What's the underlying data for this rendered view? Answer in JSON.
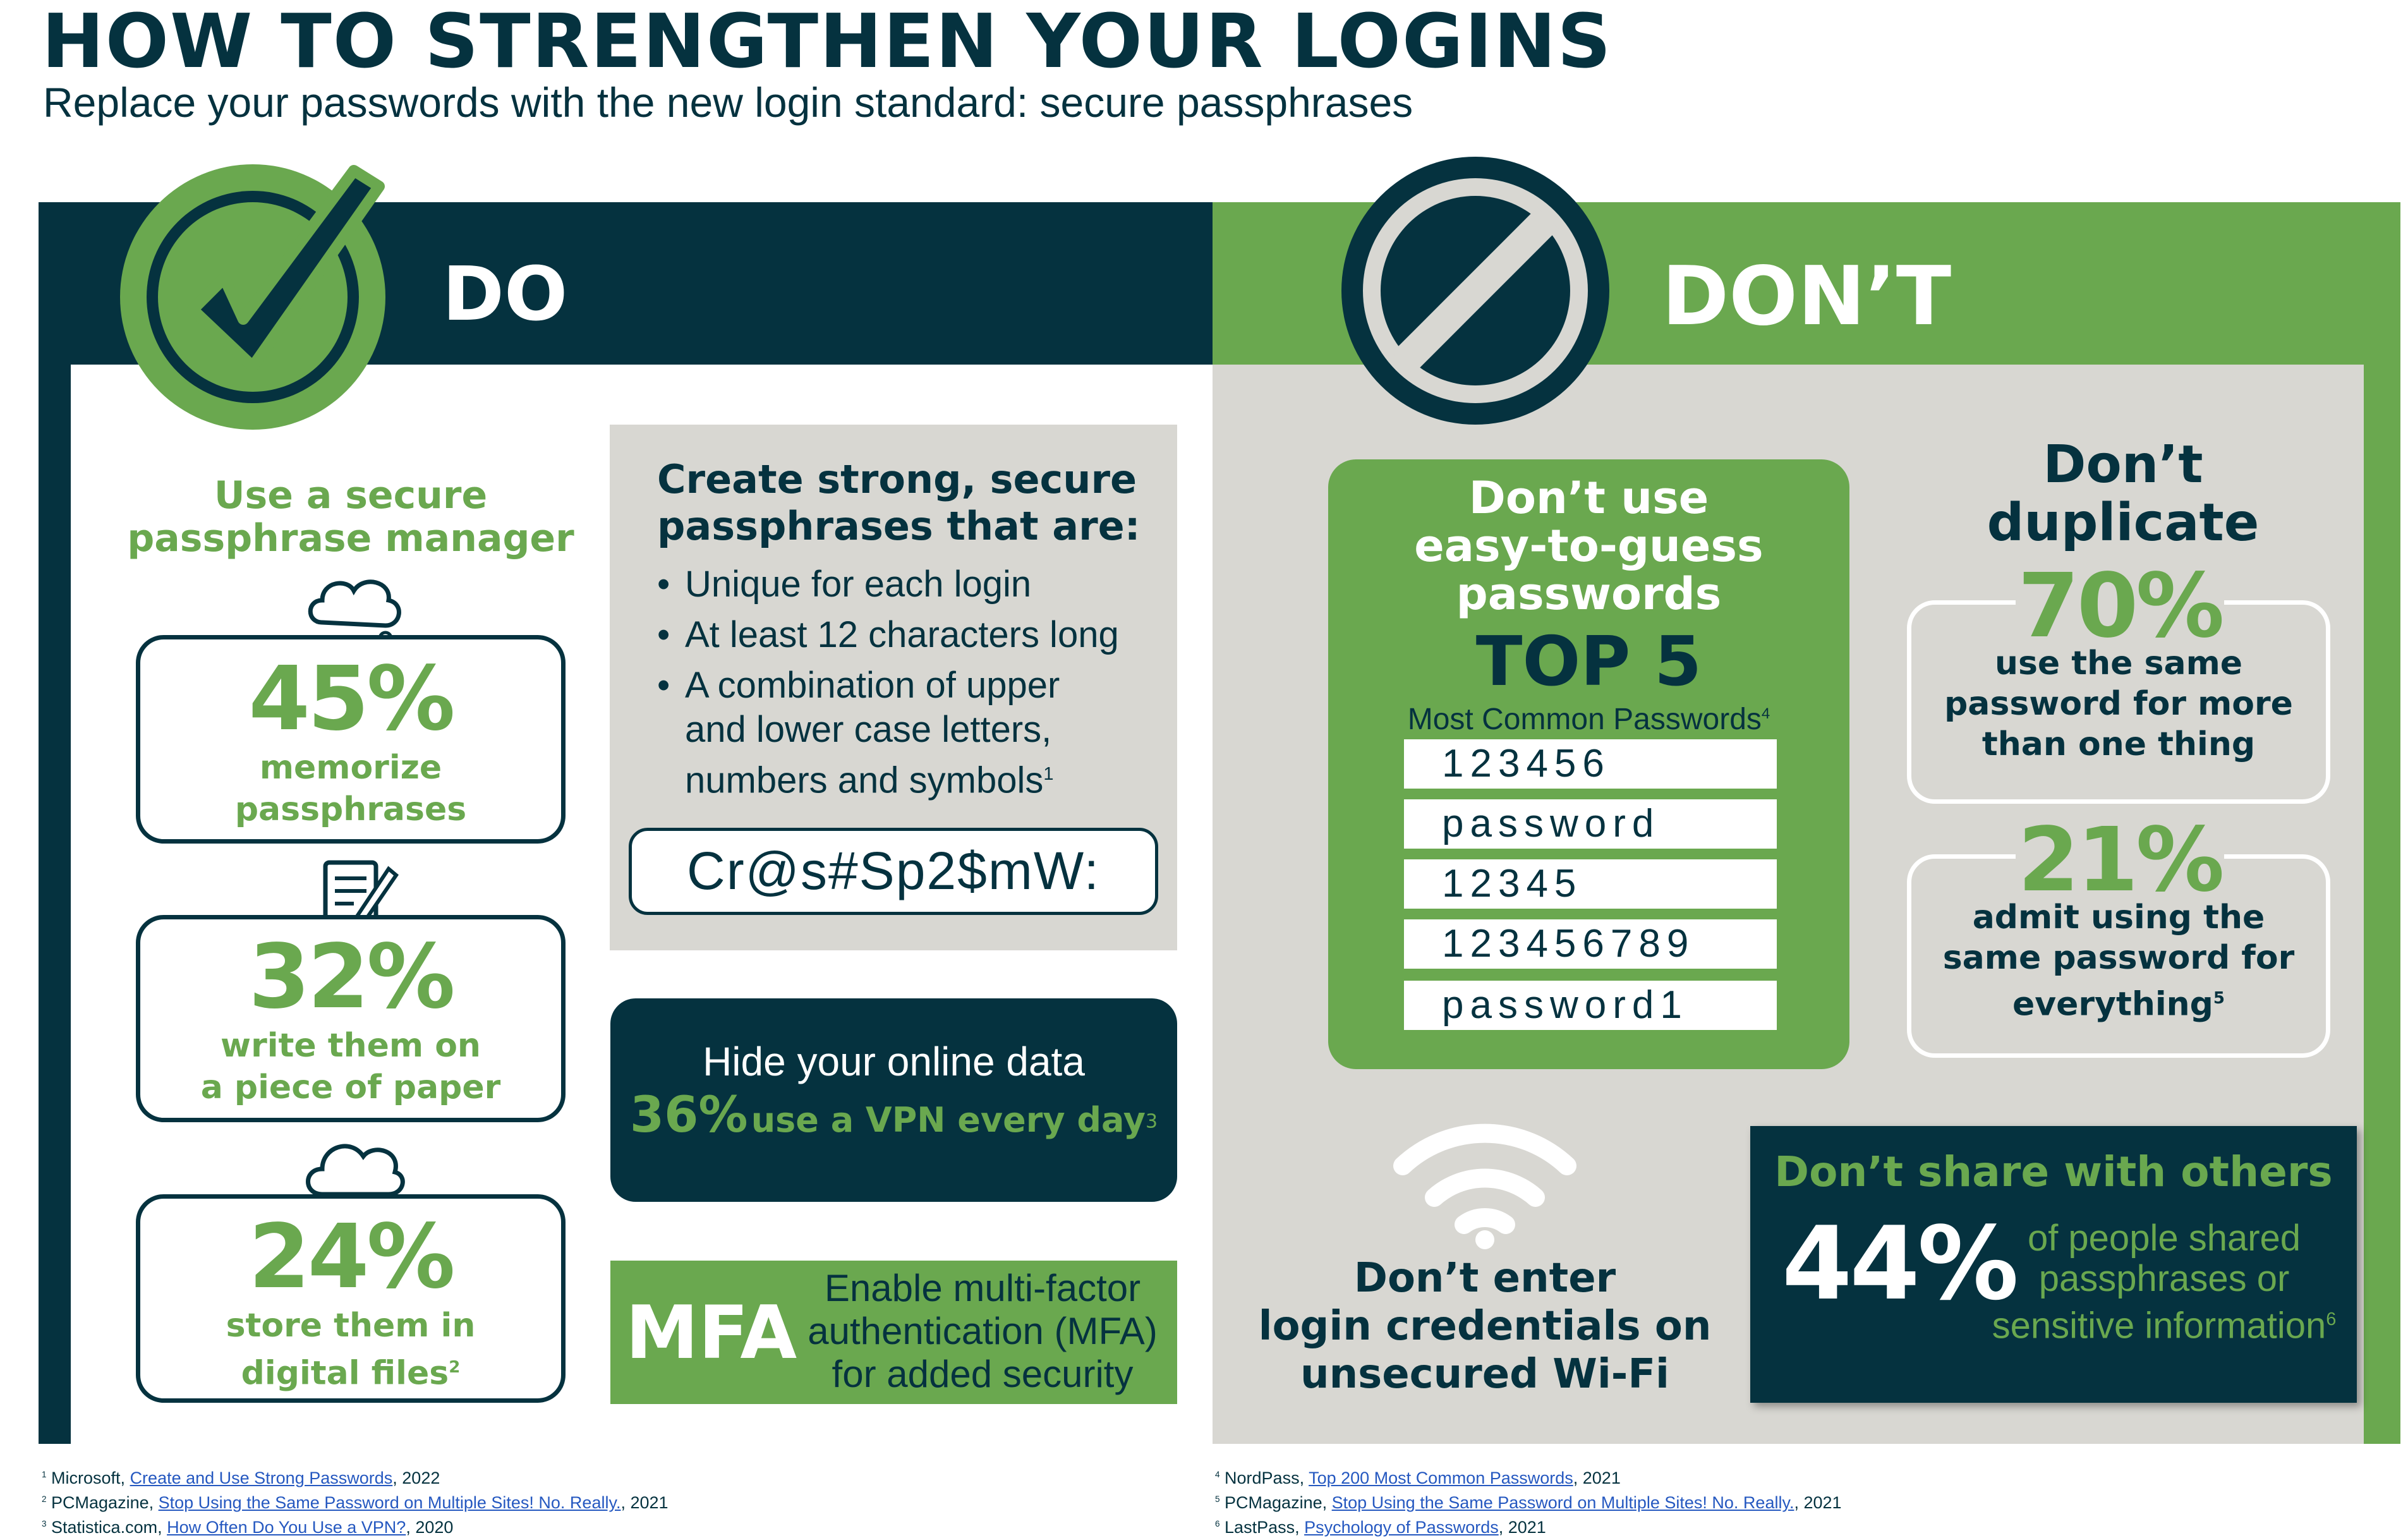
{
  "header": {
    "title": "HOW TO STRENGTHEN YOUR LOGINS",
    "subtitle": "Replace your passwords with the new login standard: secure passphrases"
  },
  "do": {
    "heading": "DO",
    "manager": {
      "label_line1": "Use a secure",
      "label_line2": "passphrase manager",
      "stats": [
        {
          "value": "45%",
          "line1": "memorize",
          "line2": "passphrases",
          "sup": ""
        },
        {
          "value": "32%",
          "line1": "write them on",
          "line2": "a piece of paper",
          "sup": ""
        },
        {
          "value": "24%",
          "line1": "store them in",
          "line2": "digital files",
          "sup": "2"
        }
      ]
    },
    "create": {
      "heading_line1": "Create strong, secure",
      "heading_line2": "passphrases that are:",
      "bullet1": "Unique for each login",
      "bullet2": "At least 12 characters long",
      "bullet3_line1": "A combination of upper",
      "bullet3_line2": "and lower case letters,",
      "bullet3_line3": "numbers and symbols",
      "bullet3_sup": "1",
      "example": "Cr@s#Sp2$mW:"
    },
    "vpn": {
      "heading": "Hide your online data",
      "stat": "36%",
      "text": "use a VPN every day",
      "sup": "3"
    },
    "mfa": {
      "label": "MFA",
      "line1": "Enable multi-factor",
      "line2": "authentication (MFA)",
      "line3": "for added security"
    }
  },
  "dont": {
    "heading": "DON’T",
    "easy": {
      "line1": "Don’t use",
      "line2": "easy-to-guess",
      "line3": "passwords",
      "top": "TOP 5",
      "caption": "Most Common Passwords",
      "caption_sup": "4",
      "passwords": [
        "123456",
        "password",
        "12345",
        "123456789",
        "password1"
      ]
    },
    "duplicate": {
      "line1": "Don’t",
      "line2": "duplicate",
      "stat1": "70%",
      "stat1_line1": "use the same",
      "stat1_line2": "password for more",
      "stat1_line3": "than one thing",
      "stat2": "21%",
      "stat2_line1": "admit using the",
      "stat2_line2": "same password for",
      "stat2_line3": "everything",
      "stat2_sup": "5"
    },
    "wifi": {
      "line1": "Don’t enter",
      "line2": "login credentials on",
      "line3": "unsecured Wi-Fi"
    },
    "share": {
      "heading": "Don’t share with others",
      "stat": "44%",
      "line1": "of people shared",
      "line2": "passphrases or",
      "line3": "sensitive information",
      "sup": "6"
    }
  },
  "footnotes": {
    "left": [
      {
        "num": "1",
        "source": "Microsoft, ",
        "link": "Create and Use Strong Passwords",
        "year": ", 2022"
      },
      {
        "num": "2",
        "source": "PCMagazine, ",
        "link": "Stop Using the Same Password on Multiple Sites! No. Really.",
        "year": ", 2021"
      },
      {
        "num": "3",
        "source": "Statistica.com, ",
        "link": "How Often Do You Use a VPN?",
        "year": ", 2020"
      }
    ],
    "right": [
      {
        "num": "4",
        "source": "NordPass, ",
        "link": "Top 200 Most Common Passwords",
        "year": ", 2021"
      },
      {
        "num": "5",
        "source": "PCMagazine, ",
        "link": "Stop Using the Same Password on Multiple Sites! No. Really.",
        "year": ", 2021"
      },
      {
        "num": "6",
        "source": "LastPass, ",
        "link": "Psychology of Passwords",
        "year": ", 2021"
      }
    ]
  },
  "colors": {
    "navy": "#05323f",
    "green": "#6aa84f",
    "gray": "#d8d7d2",
    "link": "#2558c0"
  }
}
